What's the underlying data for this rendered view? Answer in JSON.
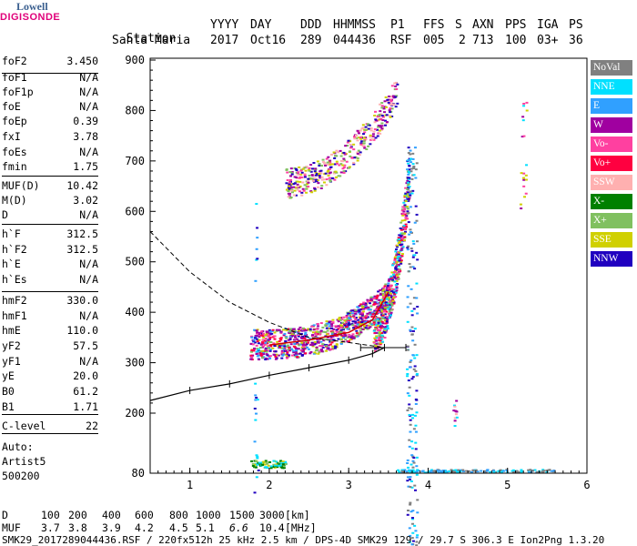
{
  "logo": {
    "line1": "Lowell",
    "line2": "DIGISONDE"
  },
  "header": {
    "labels": [
      "Station",
      "YYYY",
      "DAY",
      "DDD",
      "HHMMSS",
      "P1",
      "FFS",
      "S",
      "AXN",
      "PPS",
      "IGA",
      "PS"
    ],
    "values": [
      "Santa Maria",
      "2017",
      "Oct16",
      "289",
      "044436",
      "RSF",
      "005",
      "2",
      "713",
      "100",
      "03+",
      "36"
    ]
  },
  "params": [
    {
      "name": "foF2",
      "value": "3.450"
    },
    {
      "name": "foF1",
      "value": "N/A"
    },
    {
      "name": "foF1p",
      "value": "N/A"
    },
    {
      "name": "foE",
      "value": "N/A"
    },
    {
      "name": "foEp",
      "value": "0.39"
    },
    {
      "name": "fxI",
      "value": "3.78"
    },
    {
      "name": "foEs",
      "value": "N/A"
    },
    {
      "name": "fmin",
      "value": "1.75"
    },
    {
      "name": "MUF(D)",
      "value": "10.42"
    },
    {
      "name": "M(D)",
      "value": "3.02"
    },
    {
      "name": "D",
      "value": "N/A"
    },
    {
      "name": "h`F",
      "value": "312.5"
    },
    {
      "name": "h`F2",
      "value": "312.5"
    },
    {
      "name": "h`E",
      "value": "N/A"
    },
    {
      "name": "h`Es",
      "value": "N/A"
    },
    {
      "name": "hmF2",
      "value": "330.0"
    },
    {
      "name": "hmF1",
      "value": "N/A"
    },
    {
      "name": "hmE",
      "value": "110.0"
    },
    {
      "name": "yF2",
      "value": "57.5"
    },
    {
      "name": "yF1",
      "value": "N/A"
    },
    {
      "name": "yE",
      "value": "20.0"
    },
    {
      "name": "B0",
      "value": "61.2"
    },
    {
      "name": "B1",
      "value": "1.71"
    },
    {
      "name": "C-level",
      "value": "22"
    }
  ],
  "auto": {
    "line1": "Auto:",
    "line2": "Artist5",
    "line3": "500200"
  },
  "legend": [
    {
      "label": "NoVal",
      "color": "#808080"
    },
    {
      "label": "NNE",
      "color": "#00e0ff"
    },
    {
      "label": "E",
      "color": "#30a0ff"
    },
    {
      "label": "W",
      "color": "#a000a0"
    },
    {
      "label": "Vo-",
      "color": "#ff40a0"
    },
    {
      "label": "Vo+",
      "color": "#ff0040"
    },
    {
      "label": "SSW",
      "color": "#ffb0b0"
    },
    {
      "label": "X-",
      "color": "#008000"
    },
    {
      "label": "X+",
      "color": "#80c060"
    },
    {
      "label": "SSE",
      "color": "#d0d000"
    },
    {
      "label": "NNW",
      "color": "#2000c0"
    }
  ],
  "chart_data": {
    "type": "scatter",
    "x_ticks": [
      "1",
      "2",
      "3",
      "4",
      "5",
      "6"
    ],
    "y_ticks": [
      "80",
      "200",
      "300",
      "400",
      "500",
      "600",
      "700",
      "800",
      "900"
    ],
    "xlim": [
      0.5,
      6.0
    ],
    "ylim": [
      80,
      900
    ],
    "profile_points": [
      [
        0.5,
        225
      ],
      [
        1.0,
        245
      ],
      [
        1.5,
        258
      ],
      [
        2.0,
        275
      ],
      [
        2.5,
        290
      ],
      [
        3.0,
        305
      ],
      [
        3.3,
        318
      ],
      [
        3.45,
        330
      ]
    ],
    "trace_points": [
      [
        2.0,
        335
      ],
      [
        2.5,
        345
      ],
      [
        3.0,
        360
      ],
      [
        3.3,
        385
      ],
      [
        3.5,
        440
      ]
    ],
    "mufline_points": [
      [
        0.5,
        560
      ],
      [
        1.0,
        480
      ],
      [
        1.5,
        420
      ],
      [
        2.0,
        380
      ],
      [
        2.5,
        350
      ],
      [
        3.0,
        340
      ],
      [
        3.45,
        330
      ]
    ],
    "error_bar": {
      "x_left": 3.15,
      "x_right": 3.72,
      "y": 330
    }
  },
  "bottom_table": {
    "row1_label": "D",
    "row1_values": [
      "100",
      "200",
      "400",
      "600",
      "800",
      "1000",
      "1500",
      "3000"
    ],
    "row1_unit": "[km]",
    "row2_label": "MUF",
    "row2_values": [
      "3.7",
      "3.8",
      "3.9",
      "4.2",
      "4.5",
      "5.1",
      "6.6",
      "10.4"
    ],
    "row2_unit": "[MHz]"
  },
  "footer": "SMK29_2017289044436.RSF / 220fx512h 25 kHz 2.5 km / DPS-4D SMK29 129 / 29.7 S 306.3 E Ion2Png 1.3.20"
}
